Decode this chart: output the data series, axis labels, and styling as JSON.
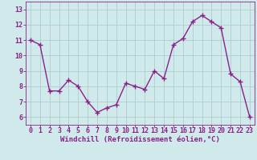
{
  "x": [
    0,
    1,
    2,
    3,
    4,
    5,
    6,
    7,
    8,
    9,
    10,
    11,
    12,
    13,
    14,
    15,
    16,
    17,
    18,
    19,
    20,
    21,
    22,
    23
  ],
  "y": [
    11.0,
    10.7,
    7.7,
    7.7,
    8.4,
    8.0,
    7.0,
    6.3,
    6.6,
    6.8,
    8.2,
    8.0,
    7.8,
    9.0,
    8.5,
    10.7,
    11.1,
    12.2,
    12.6,
    12.2,
    11.8,
    8.8,
    8.3,
    6.0
  ],
  "line_color": "#882288",
  "marker_color": "#882288",
  "bg_color": "#d0eaec",
  "grid_color": "#b0cccc",
  "xlabel": "Windchill (Refroidissement éolien,°C)",
  "xlim": [
    -0.5,
    23.5
  ],
  "ylim": [
    5.5,
    13.5
  ],
  "yticks": [
    6,
    7,
    8,
    9,
    10,
    11,
    12,
    13
  ],
  "xticks": [
    0,
    1,
    2,
    3,
    4,
    5,
    6,
    7,
    8,
    9,
    10,
    11,
    12,
    13,
    14,
    15,
    16,
    17,
    18,
    19,
    20,
    21,
    22,
    23
  ],
  "tick_color": "#882288",
  "xlabel_color": "#882288",
  "xlabel_fontsize": 6.5,
  "tick_fontsize": 6.0,
  "marker_size": 2.5,
  "line_width": 1.0
}
